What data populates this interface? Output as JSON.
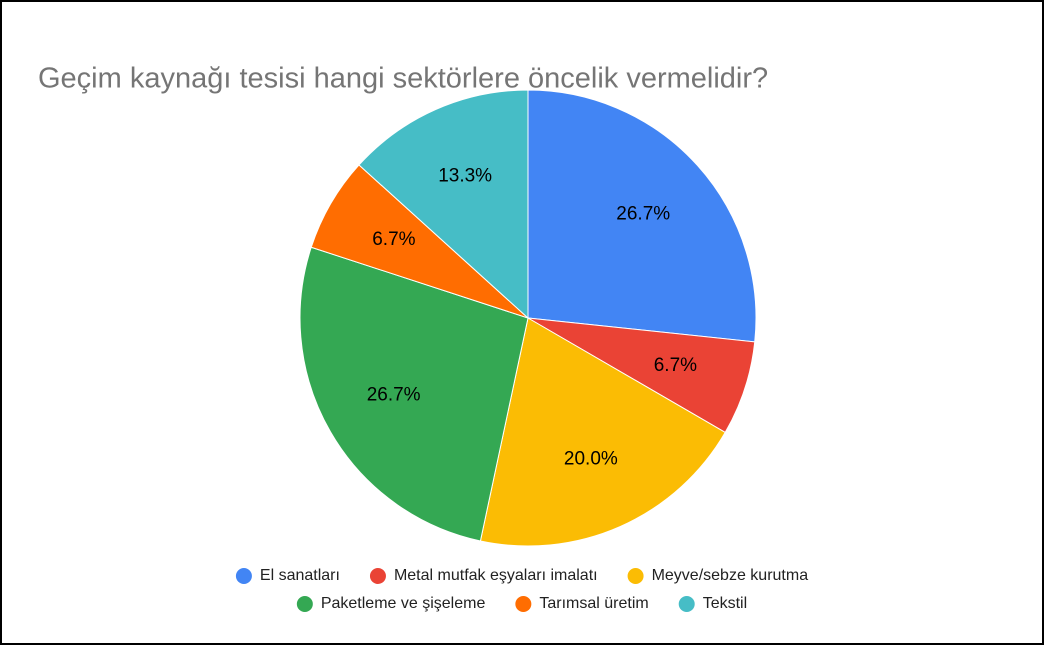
{
  "chart_data": {
    "type": "pie",
    "title": "Geçim kaynağı tesisi hangi sektörlere öncelik vermelidir?",
    "categories": [
      "El sanatları",
      "Metal mutfak eşyaları imalatı",
      "Meyve/sebze kurutma",
      "Paketleme ve şişeleme",
      "Tarımsal üretim",
      "Tekstil"
    ],
    "values": [
      26.7,
      6.7,
      20.0,
      26.7,
      6.7,
      13.3
    ],
    "value_labels": [
      "26.7%",
      "6.7%",
      "20.0%",
      "26.7%",
      "6.7%",
      "13.3%"
    ],
    "colors": [
      "#4285f4",
      "#ea4335",
      "#fbbc04",
      "#34a853",
      "#ff6d01",
      "#46bdc6"
    ],
    "legend": "bottom"
  }
}
